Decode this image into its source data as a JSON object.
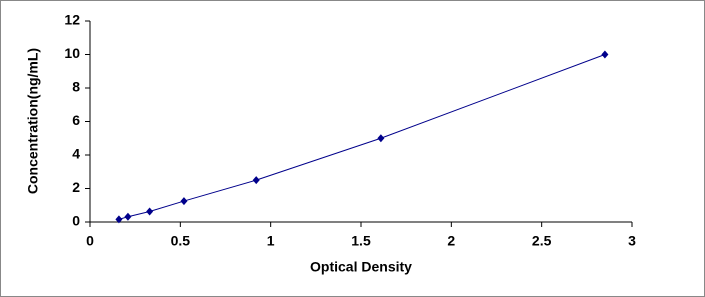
{
  "chart_data": {
    "type": "line",
    "xlabel": "Optical Density",
    "ylabel": "Concentration(ng/mL)",
    "x": [
      0.16,
      0.21,
      0.33,
      0.52,
      0.92,
      1.61,
      2.85
    ],
    "series": [
      {
        "color": "#00008b",
        "values": [
          0.156,
          0.312,
          0.625,
          1.25,
          2.5,
          5,
          10
        ]
      }
    ],
    "xlim": [
      0,
      3
    ],
    "xticks": [
      0,
      0.5,
      1,
      1.5,
      2,
      2.5,
      3
    ],
    "ylim": [
      0,
      12
    ],
    "yticks": [
      0,
      2,
      4,
      6,
      8,
      10,
      12
    ],
    "grid": false
  }
}
